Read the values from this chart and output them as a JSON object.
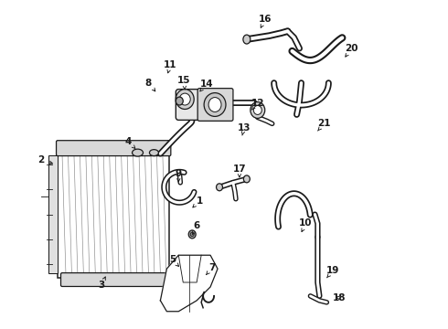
{
  "background_color": "#ffffff",
  "fig_width": 4.9,
  "fig_height": 3.6,
  "dpi": 100,
  "line_color": "#1a1a1a",
  "label_fontsize": 7.5,
  "labels": {
    "1": [
      210,
      228,
      218,
      220
    ],
    "2": [
      60,
      180,
      44,
      175
    ],
    "3": [
      115,
      303,
      110,
      313
    ],
    "4": [
      148,
      163,
      140,
      155
    ],
    "5": [
      196,
      293,
      188,
      285
    ],
    "6": [
      210,
      258,
      215,
      248
    ],
    "7": [
      225,
      302,
      232,
      294
    ],
    "8": [
      170,
      100,
      162,
      90
    ],
    "9": [
      195,
      200,
      195,
      190
    ],
    "10": [
      330,
      255,
      335,
      245
    ],
    "11": [
      183,
      80,
      186,
      70
    ],
    "12": [
      275,
      120,
      282,
      112
    ],
    "13": [
      265,
      148,
      267,
      140
    ],
    "14": [
      218,
      100,
      226,
      91
    ],
    "15": [
      202,
      98,
      201,
      87
    ],
    "16": [
      285,
      30,
      290,
      20
    ],
    "17": [
      262,
      195,
      262,
      185
    ],
    "18": [
      365,
      325,
      372,
      327
    ],
    "19": [
      358,
      305,
      365,
      297
    ],
    "20": [
      378,
      62,
      385,
      52
    ],
    "21": [
      348,
      143,
      355,
      135
    ]
  }
}
